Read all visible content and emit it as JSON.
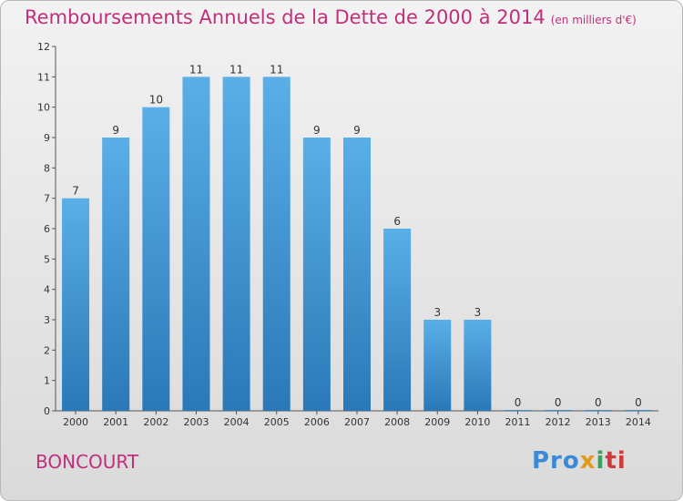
{
  "chart_data": {
    "type": "bar",
    "title": "Remboursements Annuels de la Dette de 2000 à 2014",
    "subtitle": "(en milliers d'€)",
    "categories": [
      "2000",
      "2001",
      "2002",
      "2003",
      "2004",
      "2005",
      "2006",
      "2007",
      "2008",
      "2009",
      "2010",
      "2011",
      "2012",
      "2013",
      "2014"
    ],
    "values": [
      7,
      9,
      10,
      11,
      11,
      11,
      9,
      9,
      6,
      3,
      3,
      0,
      0,
      0,
      0
    ],
    "ylim": [
      0,
      12
    ],
    "yticks": [
      0,
      1,
      2,
      3,
      4,
      5,
      6,
      7,
      8,
      9,
      10,
      11,
      12
    ],
    "grid": false,
    "legend": "none",
    "colors": {
      "bar_top": "#5aafe8",
      "bar_bottom": "#2a78b8",
      "title": "#c0307a"
    }
  },
  "footer": {
    "location": "BONCOURT",
    "logo": "Proxiti",
    "logo_parts": [
      "Pro",
      "x",
      "i",
      "ti"
    ]
  }
}
